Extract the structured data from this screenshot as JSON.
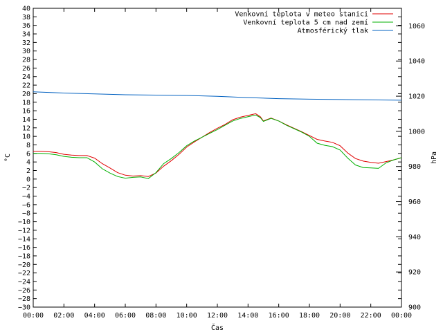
{
  "chart_data": {
    "type": "line",
    "xlabel": "Čas",
    "ylabel": "°C",
    "y2label": "hPa",
    "x_ticks": [
      "00:00",
      "02:00",
      "04:00",
      "06:00",
      "08:00",
      "10:00",
      "12:00",
      "14:00",
      "16:00",
      "18:00",
      "20:00",
      "22:00",
      "00:00"
    ],
    "xlim": [
      0,
      24
    ],
    "ylim": [
      -30,
      40
    ],
    "y_ticks_step": 2,
    "y2lim": [
      900,
      1070
    ],
    "y2_ticks": [
      900,
      920,
      940,
      960,
      980,
      1000,
      1020,
      1040,
      1060
    ],
    "grid": false,
    "legend_position": "top-right",
    "series": [
      {
        "name": "Venkovní teplota v meteo stanici",
        "axis": "left",
        "color": "#e00000",
        "x": [
          0,
          0.5,
          1,
          1.5,
          2,
          2.5,
          3,
          3.5,
          4,
          4.5,
          5,
          5.5,
          6,
          6.5,
          7,
          7.5,
          8,
          8.5,
          9,
          9.5,
          10,
          10.5,
          11,
          11.5,
          12,
          12.5,
          13,
          13.5,
          14,
          14.5,
          14.8,
          15,
          15.5,
          16,
          16.5,
          17,
          17.5,
          18,
          18.5,
          19,
          19.5,
          20,
          20.5,
          21,
          21.5,
          22,
          22.5,
          23,
          23.5,
          24
        ],
        "y": [
          6.5,
          6.5,
          6.4,
          6.2,
          5.8,
          5.6,
          5.5,
          5.5,
          4.9,
          3.6,
          2.6,
          1.5,
          0.9,
          0.7,
          0.8,
          0.6,
          1.4,
          3.0,
          4.3,
          5.8,
          7.5,
          8.7,
          9.8,
          10.9,
          11.9,
          12.8,
          13.9,
          14.5,
          14.9,
          15.3,
          14.6,
          13.6,
          14.3,
          13.6,
          12.7,
          11.9,
          11.1,
          10.2,
          9.3,
          8.9,
          8.6,
          7.8,
          6.1,
          4.8,
          4.2,
          3.9,
          3.7,
          4.1,
          4.5,
          5.0
        ]
      },
      {
        "name": "Venkovní teplota 5 cm nad zemí",
        "axis": "left",
        "color": "#00b000",
        "x": [
          0,
          0.5,
          1,
          1.5,
          2,
          2.5,
          3,
          3.5,
          4,
          4.5,
          5,
          5.5,
          6,
          6.5,
          7,
          7.5,
          8,
          8.5,
          9,
          9.5,
          10,
          10.5,
          11,
          11.5,
          12,
          12.5,
          13,
          13.5,
          14,
          14.5,
          14.8,
          15,
          15.5,
          16,
          16.5,
          17,
          17.5,
          18,
          18.5,
          19,
          19.5,
          20,
          20.5,
          21,
          21.5,
          22,
          22.5,
          23,
          23.5,
          24
        ],
        "y": [
          6.0,
          6.0,
          5.9,
          5.7,
          5.3,
          5.1,
          5.0,
          5.0,
          4.0,
          2.4,
          1.4,
          0.6,
          0.2,
          0.4,
          0.5,
          0.1,
          1.5,
          3.6,
          4.8,
          6.2,
          7.8,
          8.9,
          9.8,
          10.7,
          11.6,
          12.6,
          13.6,
          14.2,
          14.6,
          15.0,
          14.4,
          13.5,
          14.2,
          13.6,
          12.6,
          11.8,
          11.0,
          10.0,
          8.4,
          7.9,
          7.6,
          6.8,
          4.9,
          3.3,
          2.7,
          2.6,
          2.5,
          3.8,
          4.5,
          5.0
        ]
      },
      {
        "name": "Atmosférický tlak",
        "axis": "right",
        "color": "#0060c0",
        "x": [
          0,
          2,
          4,
          6,
          8,
          10,
          12,
          14,
          16,
          18,
          20,
          22,
          24
        ],
        "y": [
          1022.5,
          1021.8,
          1021.3,
          1020.8,
          1020.6,
          1020.4,
          1019.9,
          1019.2,
          1018.6,
          1018.3,
          1018.1,
          1017.9,
          1017.7
        ]
      }
    ]
  }
}
